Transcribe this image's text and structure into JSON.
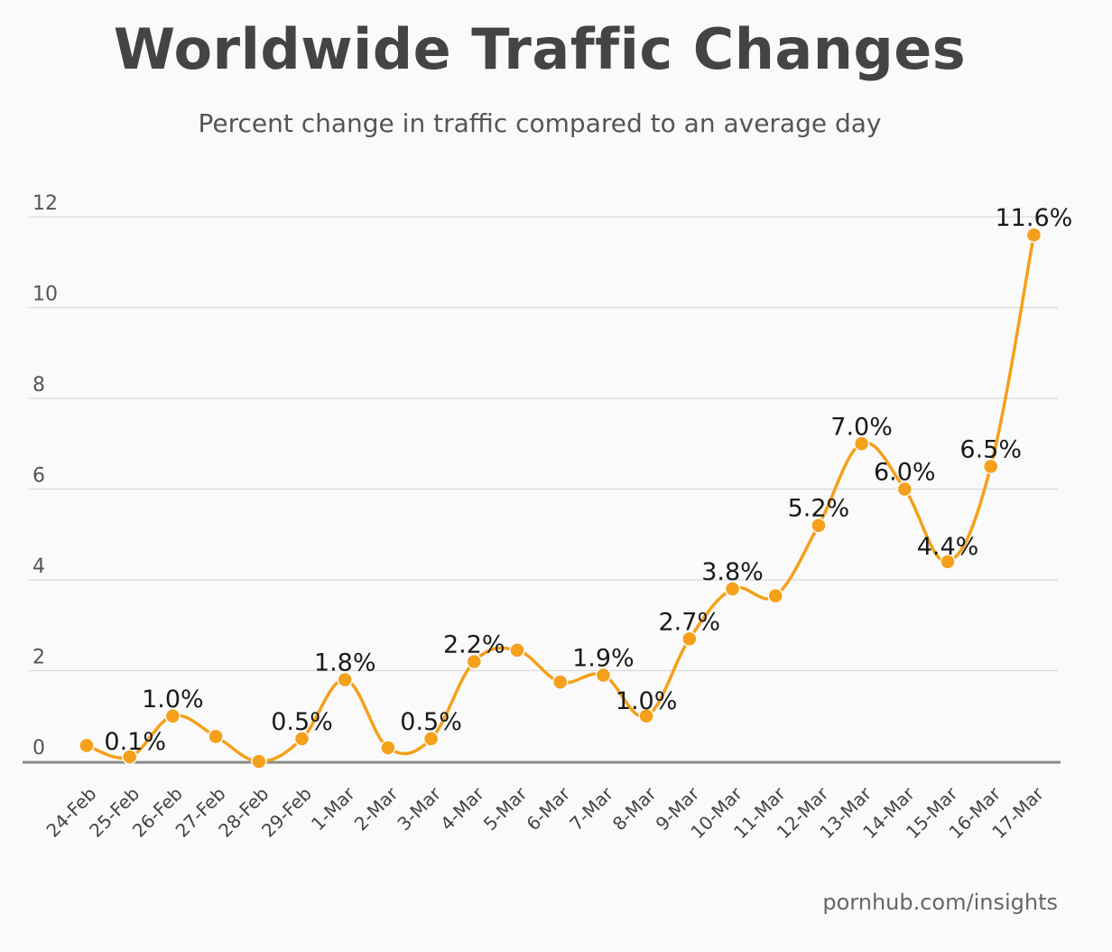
{
  "chart_data": {
    "type": "line",
    "title": "Worldwide Traffic Changes",
    "subtitle": "Percent change in traffic compared to an average day",
    "xlabel": "",
    "ylabel": "",
    "ylim": [
      0,
      12
    ],
    "yticks": [
      0,
      2,
      4,
      6,
      8,
      10,
      12
    ],
    "grid": true,
    "legend": "none",
    "categories": [
      "24-Feb",
      "25-Feb",
      "26-Feb",
      "27-Feb",
      "28-Feb",
      "29-Feb",
      "1-Mar",
      "2-Mar",
      "3-Mar",
      "4-Mar",
      "5-Mar",
      "6-Mar",
      "7-Mar",
      "8-Mar",
      "9-Mar",
      "10-Mar",
      "11-Mar",
      "12-Mar",
      "13-Mar",
      "14-Mar",
      "15-Mar",
      "16-Mar",
      "17-Mar"
    ],
    "series": [
      {
        "name": "Percent change in traffic",
        "color": "#F5A01A",
        "values": [
          0.35,
          0.1,
          1.0,
          0.55,
          0.0,
          0.5,
          1.8,
          0.3,
          0.5,
          2.2,
          2.45,
          1.75,
          1.9,
          1.0,
          2.7,
          3.8,
          3.65,
          5.2,
          7.0,
          6.0,
          4.4,
          6.5,
          11.6
        ]
      }
    ],
    "data_labels": [
      {
        "index": 1,
        "text": "0.1%"
      },
      {
        "index": 2,
        "text": "1.0%"
      },
      {
        "index": 5,
        "text": "0.5%"
      },
      {
        "index": 6,
        "text": "1.8%"
      },
      {
        "index": 8,
        "text": "0.5%"
      },
      {
        "index": 9,
        "text": "2.2%"
      },
      {
        "index": 12,
        "text": "1.9%"
      },
      {
        "index": 13,
        "text": "1.0%"
      },
      {
        "index": 14,
        "text": "2.7%"
      },
      {
        "index": 15,
        "text": "3.8%"
      },
      {
        "index": 17,
        "text": "5.2%"
      },
      {
        "index": 18,
        "text": "7.0%"
      },
      {
        "index": 19,
        "text": "6.0%"
      },
      {
        "index": 20,
        "text": "4.4%"
      },
      {
        "index": 21,
        "text": "6.5%"
      },
      {
        "index": 22,
        "text": "11.6%"
      }
    ],
    "source": "pornhub.com/insights"
  },
  "colors": {
    "line": "#F5A01A",
    "grid": "#d9d9d9",
    "baseline": "#8a8a8a",
    "tick_text": "#555555",
    "label_text": "#1a1a1a"
  }
}
